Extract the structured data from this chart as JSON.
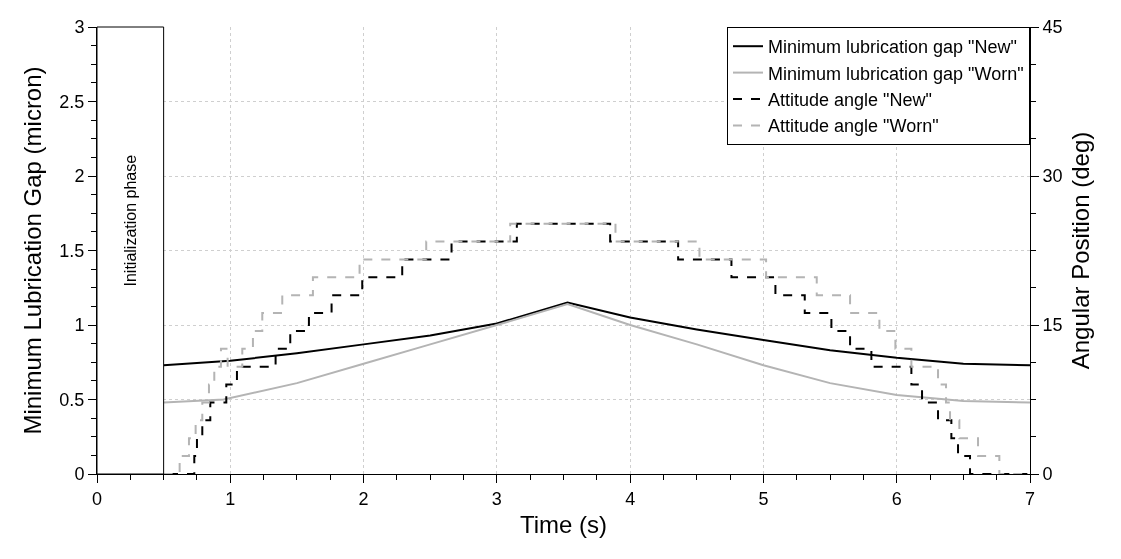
{
  "chart_data": {
    "type": "line",
    "xlabel": "Time (s)",
    "ylabel": "Minimum Lubrication Gap (micron)",
    "y2label": "Angular Position (deg)",
    "xlim": [
      0,
      7
    ],
    "xticks": [
      0,
      1,
      2,
      3,
      4,
      5,
      6,
      7
    ],
    "ylim": [
      0,
      3
    ],
    "yticks": [
      0,
      0.5,
      1,
      1.5,
      2,
      2.5,
      3
    ],
    "y2lim": [
      0,
      45
    ],
    "y2ticks": [
      0,
      15,
      30,
      45
    ],
    "grid": true,
    "legend": "top right",
    "bands": [
      {
        "axis": "x",
        "from": 0,
        "to": 0.5,
        "label": "Initialization phase",
        "color": "#ffffff"
      }
    ],
    "series": [
      {
        "name": "Minimum lubrication gap \"New\"",
        "color": "#000000",
        "line_style": "solid",
        "x": [
          0.5,
          1,
          1.5,
          2,
          2.5,
          3,
          3.53,
          4,
          4.5,
          5,
          5.5,
          6,
          6.5,
          7
        ],
        "values": [
          0.73,
          0.76,
          0.81,
          0.87,
          0.93,
          1.01,
          1.15,
          1.05,
          0.97,
          0.9,
          0.83,
          0.78,
          0.74,
          0.73
        ]
      },
      {
        "name": "Minimum lubrication gap \"Worn\"",
        "color": "#b4b4b4",
        "line_style": "solid",
        "x": [
          0.5,
          0.95,
          1.5,
          2,
          2.5,
          3,
          3.53,
          4,
          4.5,
          5,
          5.5,
          6,
          6.5,
          7
        ],
        "values": [
          0.48,
          0.5,
          0.61,
          0.74,
          0.87,
          1.0,
          1.14,
          1.0,
          0.87,
          0.73,
          0.61,
          0.53,
          0.49,
          0.48
        ]
      },
      {
        "name": "Attitude angle \"New\"",
        "color": "#000000",
        "type": "step",
        "axis": "y2",
        "line_style": "dashed",
        "x": [
          0,
          0.73,
          0.75,
          0.79,
          0.85,
          0.97,
          1.05,
          1.34,
          1.45,
          1.59,
          1.76,
          1.99,
          2.29,
          2.66,
          3.15,
          3.85,
          4.36,
          4.76,
          5.09,
          5.31,
          5.51,
          5.65,
          5.81,
          6.11,
          6.19,
          6.31,
          6.41,
          6.46,
          6.55,
          7
        ],
        "values": [
          0,
          1.8,
          3.6,
          5.4,
          7.2,
          9,
          10.8,
          12.6,
          14.4,
          16.2,
          18,
          19.8,
          21.6,
          23.4,
          25.2,
          23.4,
          21.6,
          19.8,
          18,
          16.2,
          14.4,
          12.6,
          10.8,
          9,
          7.2,
          5.4,
          3.6,
          1.8,
          0,
          0
        ]
      },
      {
        "name": "Attitude angle \"Worn\"",
        "color": "#b4b4b4",
        "type": "step",
        "axis": "y2",
        "line_style": "dashed",
        "x": [
          0.5,
          0.62,
          0.69,
          0.74,
          0.79,
          0.84,
          0.88,
          0.93,
          0.98,
          1.09,
          1.17,
          1.24,
          1.39,
          1.62,
          1.97,
          2.47,
          3.1,
          3.89,
          4.52,
          5.02,
          5.4,
          5.65,
          5.87,
          5.99,
          6.11,
          6.31,
          6.37,
          6.4,
          6.47,
          6.61,
          6.77,
          7
        ],
        "values": [
          0,
          1.8,
          3.6,
          5.4,
          7.2,
          9,
          10.8,
          12.6,
          10.8,
          12.6,
          14.4,
          16.2,
          18,
          19.8,
          21.6,
          23.4,
          25.2,
          23.4,
          21.6,
          19.8,
          18,
          16.2,
          14.4,
          12.6,
          10.8,
          9,
          7.2,
          5.4,
          3.6,
          1.8,
          0,
          0
        ]
      }
    ]
  }
}
